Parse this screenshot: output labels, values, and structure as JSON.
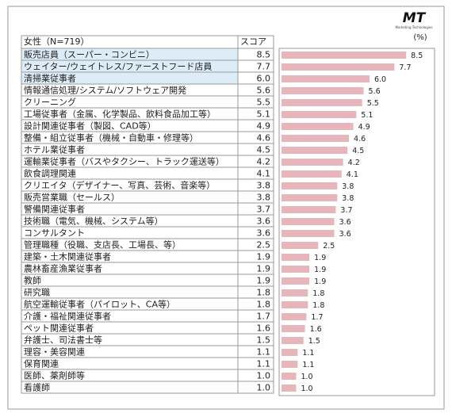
{
  "logo": {
    "name": "MT",
    "tagline": "Marketing Technologies"
  },
  "chart_data": {
    "type": "bar",
    "orientation": "horizontal",
    "table_header": {
      "category": "女性（N=719）",
      "score": "スコア"
    },
    "unit_label": "(%)",
    "categories": [
      "販売店員（スーパー・コンビニ）",
      "ウェイター/ウェイトレス/ファーストフード店員",
      "清掃業従事者",
      "情報通信処理/システム/ソフトウェア開発",
      "クリーニング",
      "工場従事者（金属、化学製品、飲料食品加工等）",
      "設計関連従事者（製図、CAD等）",
      "整備・組立従事者（機械・自動車・修理等）",
      "ホテル業従事者",
      "運輸業従事者（バスやタクシー、トラック運送等）",
      "飲食調理関連",
      "クリエイタ（デザイナー、写真、芸術、音楽等）",
      "販売営業職（セールス）",
      "警備関連従事者",
      "技術職（電気、機械、システム等）",
      "コンサルタント",
      "管理職種（役職、支店長、工場長、等）",
      "建築・土木関連従事者",
      "農林畜産漁業従事者",
      "教師",
      "研究職",
      "航空運輸従事者（パイロット、CA等）",
      "介護・福祉関連従事者",
      "ペット関連従事者",
      "弁護士、司法書士等",
      "理容・美容関連",
      "保育関連",
      "医師、薬剤師等",
      "看護師"
    ],
    "values": [
      8.5,
      7.7,
      6.0,
      5.6,
      5.5,
      5.1,
      4.9,
      4.6,
      4.5,
      4.2,
      4.1,
      3.8,
      3.8,
      3.7,
      3.6,
      3.6,
      2.5,
      1.9,
      1.9,
      1.9,
      1.8,
      1.8,
      1.7,
      1.6,
      1.5,
      1.1,
      1.1,
      1.0,
      1.0
    ],
    "value_labels": [
      "8.5",
      "7.7",
      "6.0",
      "5.6",
      "5.5",
      "5.1",
      "4.9",
      "4.6",
      "4.5",
      "4.2",
      "4.1",
      "3.8",
      "3.8",
      "3.7",
      "3.6",
      "3.6",
      "2.5",
      "1.9",
      "1.9",
      "1.9",
      "1.8",
      "1.8",
      "1.7",
      "1.6",
      "1.5",
      "1.1",
      "1.1",
      "1.0",
      "1.0"
    ],
    "highlight_rows": 3,
    "highlight_color": "#dcedf7",
    "color": "#e6b6ba",
    "xlim": [
      0,
      10.6
    ]
  }
}
